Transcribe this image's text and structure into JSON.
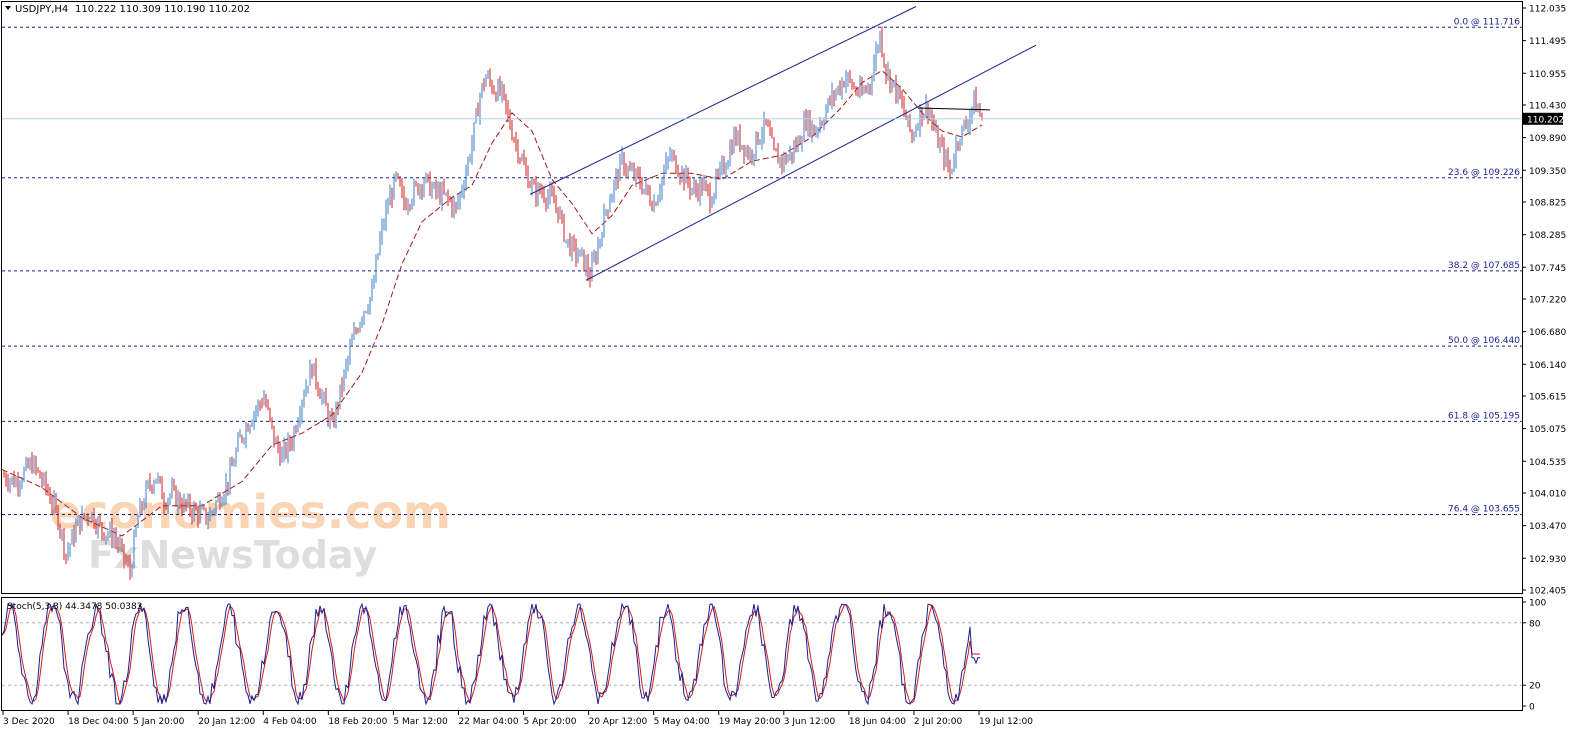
{
  "header": {
    "symbol_label": "USDJPY,H4",
    "ohlc_label": "110.222 110.309 110.190 110.202"
  },
  "watermark": {
    "line1": "economies.com",
    "line2": "FxNewsToday"
  },
  "colors": {
    "bull": "#3d7cc9",
    "bear": "#d11e1e",
    "ma": "#9b1c1c",
    "channel": "#1b1f8a",
    "fib": "#1b1f8a",
    "stoch_main": "#1b1f8a",
    "stoch_signal": "#d11e1e",
    "price_tag_bg": "#000000"
  },
  "chart_data": [
    {
      "type": "line",
      "subtype": "candlestick",
      "timeframe": "H4",
      "ylim": [
        102.405,
        112.035
      ],
      "y_ticks": [
        "112.035",
        "111.495",
        "110.955",
        "110.430",
        "109.890",
        "109.350",
        "108.825",
        "108.285",
        "107.745",
        "107.220",
        "106.680",
        "106.140",
        "105.615",
        "105.075",
        "104.535",
        "104.010",
        "103.470",
        "102.930",
        "102.405"
      ],
      "x_tick_labels": [
        "3 Dec 2020",
        "18 Dec 04:00",
        "5 Jan 20:00",
        "20 Jan 12:00",
        "4 Feb 04:00",
        "18 Feb 20:00",
        "5 Mar 12:00",
        "22 Mar 04:00",
        "5 Apr 20:00",
        "20 Apr 12:00",
        "5 May 04:00",
        "19 May 20:00",
        "3 Jun 12:00",
        "18 Jun 04:00",
        "2 Jul 20:00",
        "19 Jul 12:00"
      ],
      "current_price": "110.202",
      "price_path": [
        [
          0,
          104.3
        ],
        [
          14,
          104.2
        ],
        [
          30,
          104.5
        ],
        [
          44,
          104.1
        ],
        [
          56,
          103.6
        ],
        [
          64,
          103.0
        ],
        [
          76,
          103.5
        ],
        [
          88,
          103.7
        ],
        [
          100,
          103.4
        ],
        [
          112,
          103.3
        ],
        [
          120,
          103.0
        ],
        [
          128,
          102.7
        ],
        [
          136,
          103.6
        ],
        [
          146,
          104.1
        ],
        [
          154,
          104.3
        ],
        [
          162,
          103.9
        ],
        [
          170,
          104.0
        ],
        [
          182,
          103.8
        ],
        [
          194,
          103.7
        ],
        [
          206,
          103.6
        ],
        [
          216,
          103.9
        ],
        [
          226,
          104.2
        ],
        [
          238,
          104.9
        ],
        [
          250,
          105.3
        ],
        [
          262,
          105.6
        ],
        [
          272,
          104.9
        ],
        [
          280,
          104.6
        ],
        [
          290,
          104.9
        ],
        [
          300,
          105.6
        ],
        [
          310,
          106.1
        ],
        [
          320,
          105.6
        ],
        [
          330,
          105.1
        ],
        [
          340,
          105.8
        ],
        [
          350,
          106.5
        ],
        [
          360,
          107.0
        ],
        [
          370,
          107.3
        ],
        [
          378,
          108.2
        ],
        [
          386,
          108.8
        ],
        [
          394,
          109.2
        ],
        [
          402,
          108.8
        ],
        [
          412,
          109.0
        ],
        [
          422,
          109.2
        ],
        [
          432,
          109.0
        ],
        [
          444,
          108.9
        ],
        [
          454,
          108.7
        ],
        [
          462,
          109.2
        ],
        [
          470,
          109.8
        ],
        [
          478,
          110.6
        ],
        [
          484,
          110.9
        ],
        [
          492,
          110.7
        ],
        [
          500,
          110.6
        ],
        [
          508,
          110.1
        ],
        [
          516,
          109.7
        ],
        [
          524,
          109.3
        ],
        [
          532,
          109.0
        ],
        [
          540,
          109.0
        ],
        [
          548,
          108.9
        ],
        [
          556,
          108.7
        ],
        [
          564,
          108.2
        ],
        [
          572,
          108.0
        ],
        [
          580,
          107.9
        ],
        [
          588,
          107.6
        ],
        [
          596,
          108.1
        ],
        [
          604,
          108.7
        ],
        [
          612,
          109.1
        ],
        [
          620,
          109.5
        ],
        [
          628,
          109.3
        ],
        [
          636,
          109.2
        ],
        [
          644,
          109.0
        ],
        [
          652,
          108.8
        ],
        [
          660,
          109.2
        ],
        [
          668,
          109.6
        ],
        [
          676,
          109.4
        ],
        [
          684,
          109.2
        ],
        [
          692,
          109.0
        ],
        [
          700,
          109.1
        ],
        [
          708,
          108.9
        ],
        [
          716,
          109.2
        ],
        [
          724,
          109.5
        ],
        [
          732,
          109.9
        ],
        [
          740,
          109.8
        ],
        [
          748,
          109.6
        ],
        [
          756,
          109.9
        ],
        [
          764,
          110.1
        ],
        [
          772,
          109.6
        ],
        [
          780,
          109.5
        ],
        [
          788,
          109.6
        ],
        [
          796,
          109.8
        ],
        [
          804,
          110.2
        ],
        [
          812,
          110.0
        ],
        [
          820,
          110.2
        ],
        [
          828,
          110.5
        ],
        [
          836,
          110.7
        ],
        [
          844,
          110.9
        ],
        [
          852,
          110.7
        ],
        [
          860,
          110.6
        ],
        [
          868,
          110.8
        ],
        [
          874,
          111.3
        ],
        [
          878,
          111.6
        ],
        [
          884,
          111.0
        ],
        [
          890,
          110.8
        ],
        [
          896,
          110.6
        ],
        [
          904,
          110.2
        ],
        [
          910,
          109.9
        ],
        [
          918,
          110.3
        ],
        [
          926,
          110.4
        ],
        [
          934,
          109.9
        ],
        [
          942,
          109.6
        ],
        [
          948,
          109.3
        ],
        [
          956,
          109.9
        ],
        [
          964,
          110.1
        ],
        [
          972,
          110.5
        ],
        [
          980,
          110.2
        ]
      ],
      "moving_average": [
        [
          0,
          104.4
        ],
        [
          40,
          104.1
        ],
        [
          80,
          103.6
        ],
        [
          120,
          103.3
        ],
        [
          160,
          103.8
        ],
        [
          200,
          103.8
        ],
        [
          240,
          104.2
        ],
        [
          270,
          104.8
        ],
        [
          300,
          105.0
        ],
        [
          330,
          105.3
        ],
        [
          360,
          106.0
        ],
        [
          380,
          106.8
        ],
        [
          400,
          107.8
        ],
        [
          420,
          108.5
        ],
        [
          450,
          108.9
        ],
        [
          470,
          109.1
        ],
        [
          490,
          109.8
        ],
        [
          510,
          110.3
        ],
        [
          530,
          110.0
        ],
        [
          550,
          109.2
        ],
        [
          570,
          108.8
        ],
        [
          590,
          108.3
        ],
        [
          610,
          108.6
        ],
        [
          630,
          109.1
        ],
        [
          660,
          109.3
        ],
        [
          690,
          109.3
        ],
        [
          720,
          109.2
        ],
        [
          750,
          109.5
        ],
        [
          780,
          109.6
        ],
        [
          810,
          109.9
        ],
        [
          840,
          110.4
        ],
        [
          860,
          110.8
        ],
        [
          880,
          111.0
        ],
        [
          900,
          110.7
        ],
        [
          920,
          110.3
        ],
        [
          940,
          110.0
        ],
        [
          960,
          109.9
        ],
        [
          980,
          110.1
        ]
      ],
      "channel_lines": [
        {
          "from": [
            530,
            108.95
          ],
          "to": [
            916,
            112.06
          ]
        },
        {
          "from": [
            586,
            107.53
          ],
          "to": [
            1036,
            111.42
          ]
        }
      ],
      "resistance_line": {
        "from": [
          918,
          110.38
        ],
        "to": [
          990,
          110.35
        ]
      },
      "fibonacci_levels": [
        {
          "label": "0.0 @ 111.716",
          "value": 111.716
        },
        {
          "label": "23.6 @ 109.226",
          "value": 109.226
        },
        {
          "label": "38.2 @ 107.685",
          "value": 107.685
        },
        {
          "label": "50.0 @ 106.440",
          "value": 106.44
        },
        {
          "label": "61.8 @ 105.195",
          "value": 105.195
        },
        {
          "label": "76.4 @ 103.655",
          "value": 103.655
        }
      ]
    },
    {
      "type": "line",
      "title": "Stoch(5,3,3) 44.3478 50.0383",
      "ylim": [
        0,
        100
      ],
      "y_ticks": [
        "100",
        "80",
        "20",
        "0"
      ],
      "levels": [
        80,
        20
      ],
      "main_last": 44.3478,
      "signal_last": 50.0383
    }
  ]
}
